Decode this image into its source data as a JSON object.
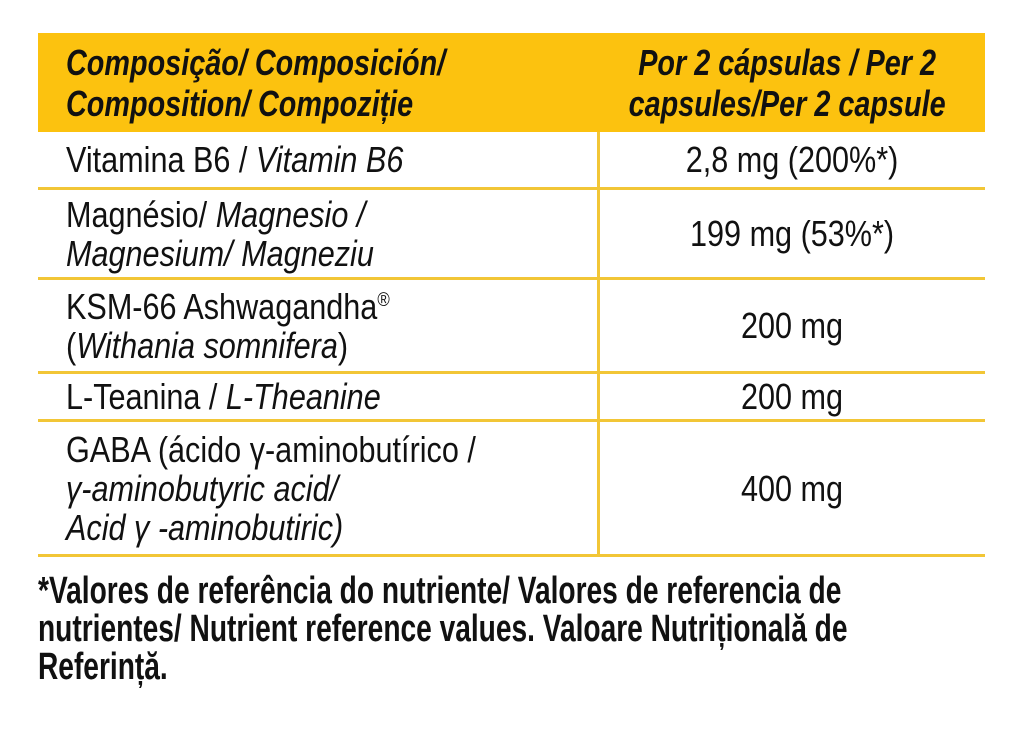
{
  "colors": {
    "header_bg": "#fcc20f",
    "grid_line": "#f2c636",
    "text": "#111111",
    "page_bg": "#ffffff"
  },
  "table": {
    "header": {
      "left_lines": [
        "Composição/ Composición/",
        "Composition/ Compoziție"
      ],
      "right_lines": [
        "Por 2 cápsulas / Per 2",
        "capsules/Per 2 capsule"
      ]
    },
    "rows": [
      {
        "key": "vitamin-b6",
        "label_lines": [
          [
            {
              "t": "Vitamina B6 / "
            },
            {
              "t": "Vitamin B6",
              "i": true
            }
          ]
        ],
        "value": "2,8 mg (200%*)"
      },
      {
        "key": "magnesium",
        "label_lines": [
          [
            {
              "t": "Magnésio/ "
            },
            {
              "t": "Magnesio /",
              "i": true
            }
          ],
          [
            {
              "t": "Magnesium/ Magneziu",
              "i": true
            }
          ]
        ],
        "value": "199 mg (53%*)"
      },
      {
        "key": "ksm66-ashwagandha",
        "label_lines": [
          [
            {
              "t": "KSM-66 Ashwagandha"
            },
            {
              "t": "®",
              "sup": true
            }
          ],
          [
            {
              "t": "("
            },
            {
              "t": "Withania somnifera",
              "i": true
            },
            {
              "t": ")"
            }
          ]
        ],
        "value": "200 mg"
      },
      {
        "key": "l-theanine",
        "label_lines": [
          [
            {
              "t": "L-Teanina / "
            },
            {
              "t": "L-Theanine",
              "i": true
            }
          ]
        ],
        "value": "200 mg"
      },
      {
        "key": "gaba",
        "label_lines": [
          [
            {
              "t": "GABA (ácido γ-aminobutírico /"
            }
          ],
          [
            {
              "t": "γ-aminobutyric acid/",
              "i": true
            }
          ],
          [
            {
              "t": "Acid γ -aminobutiric)",
              "i": true
            }
          ]
        ],
        "value": "400 mg"
      }
    ]
  },
  "footnote": {
    "lines": [
      "*Valores de referência do nutriente/ Valores de referencia de",
      "nutrientes/ Nutrient reference values. Valoare Nutrițională de",
      "Referință."
    ]
  }
}
